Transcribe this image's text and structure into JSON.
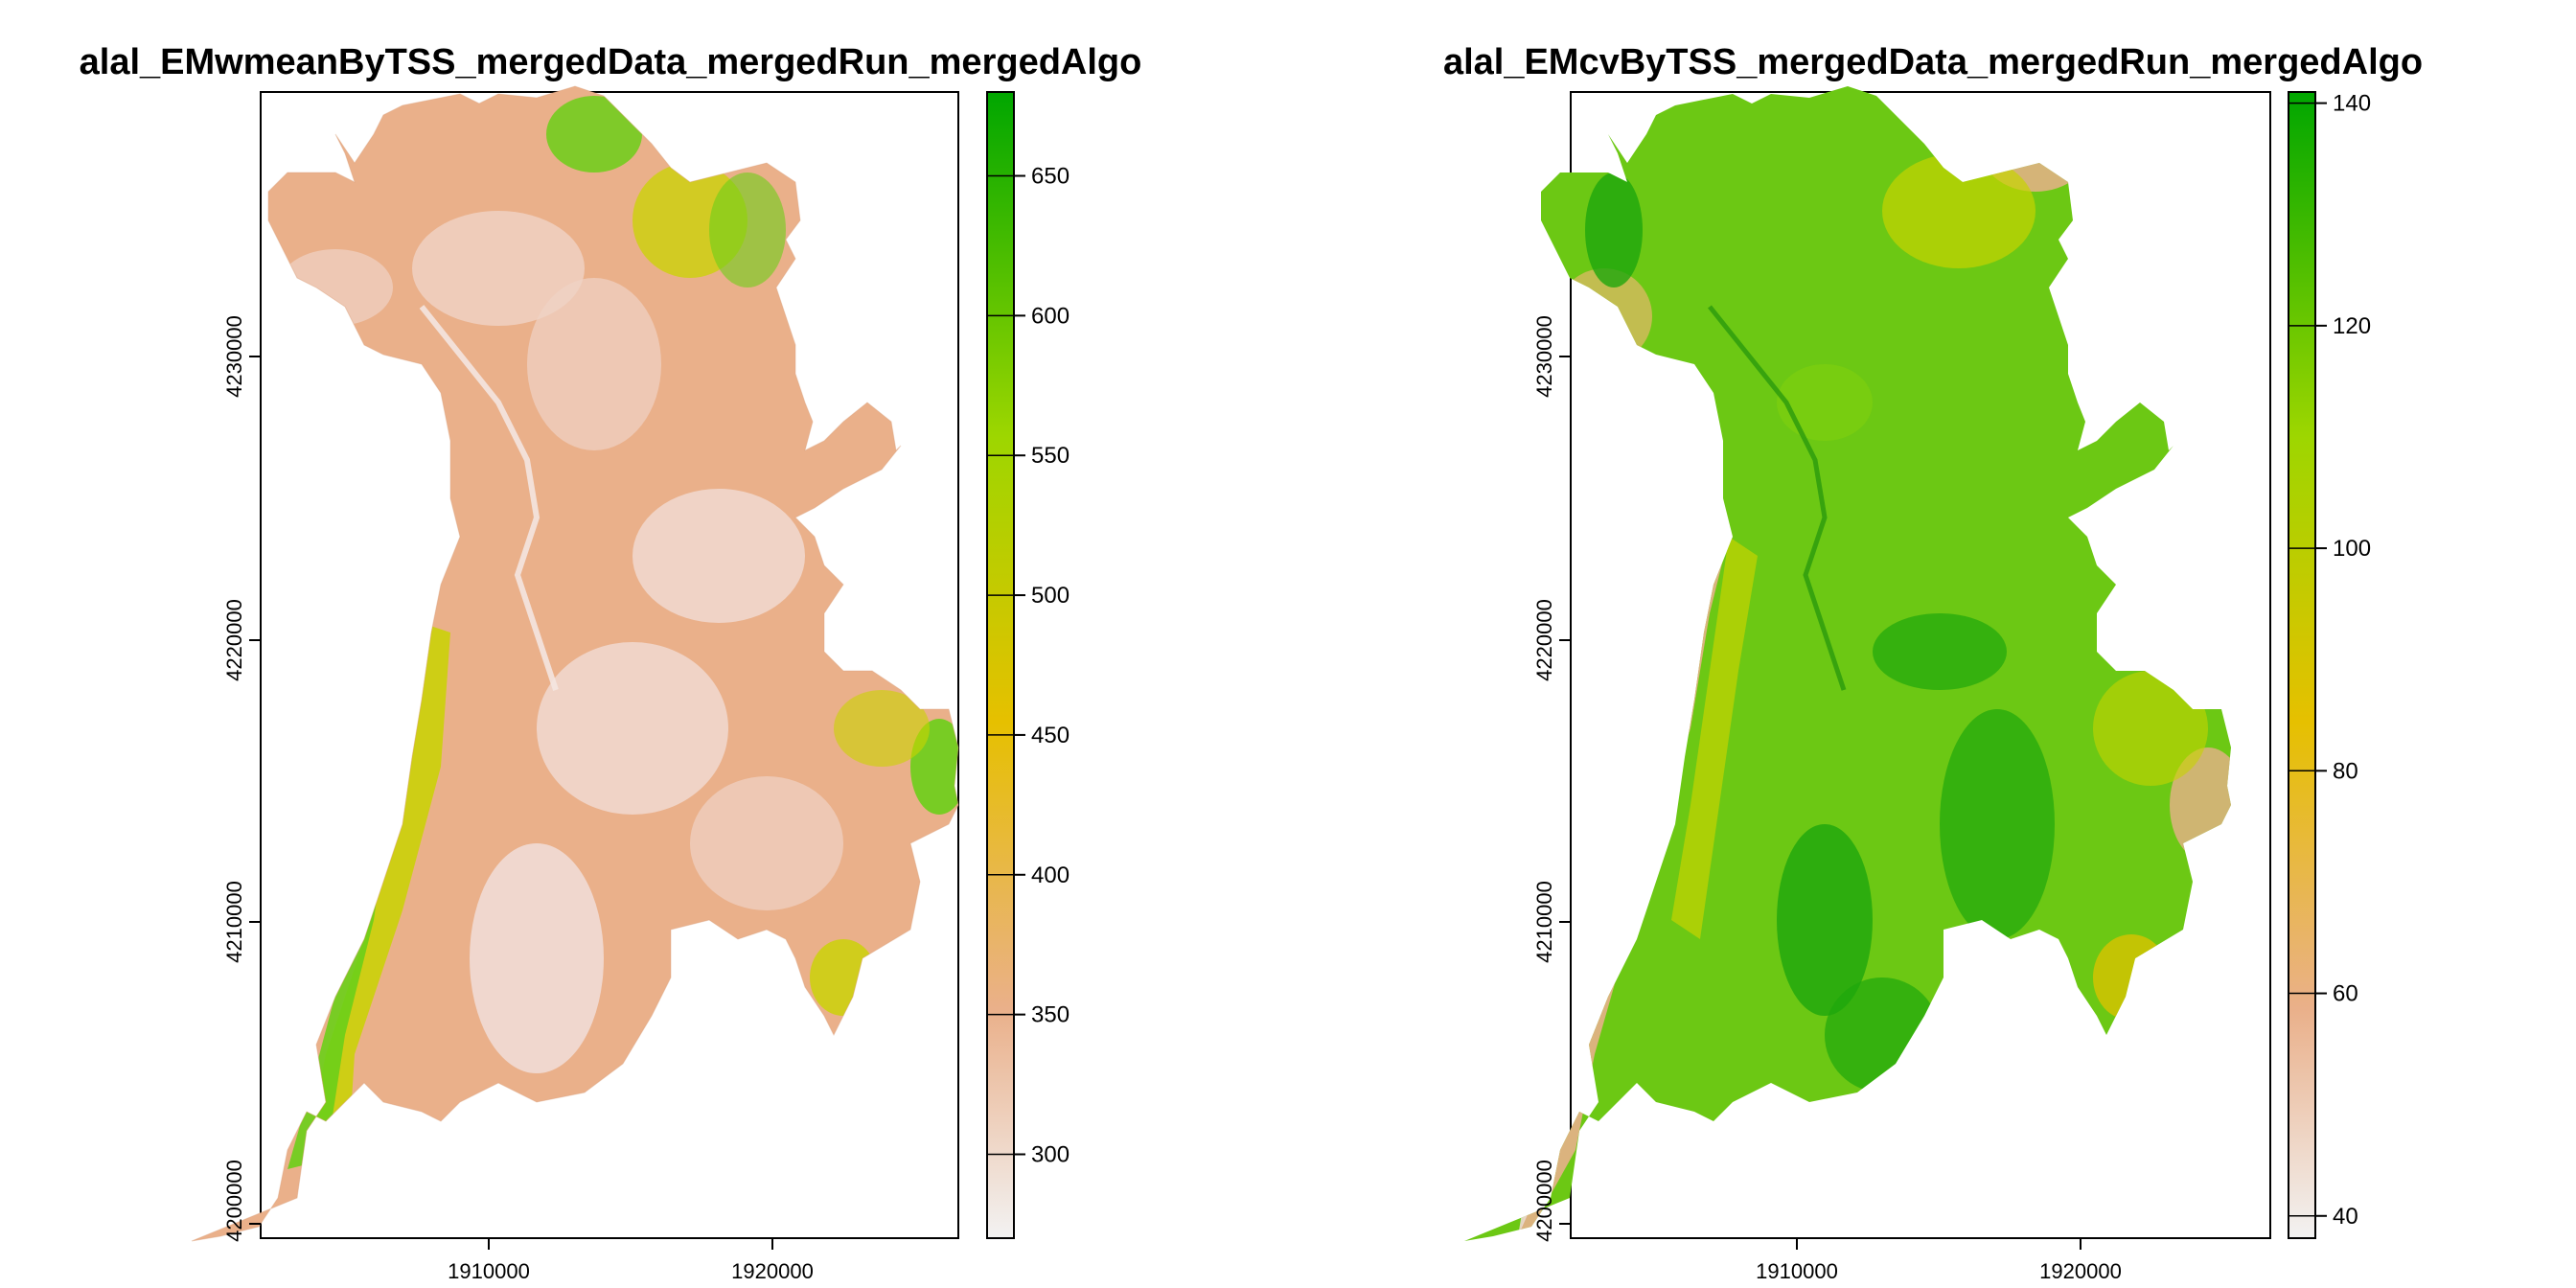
{
  "panels": [
    {
      "title": "alal_EMwmeanByTSS_mergedData_mergedRun_mergedAlgo",
      "x_ticks": [
        "1910000",
        "1920000"
      ],
      "y_ticks": [
        "4200000",
        "4210000",
        "4220000",
        "4230000"
      ],
      "legend_ticks": [
        "300",
        "350",
        "400",
        "450",
        "500",
        "550",
        "600",
        "650"
      ],
      "legend_range": [
        270,
        680
      ],
      "dominant_fill": "#eab08a",
      "low_fill": "#f1dcd5",
      "high_fill": "#6ccf18"
    },
    {
      "title": "alal_EMcvByTSS_mergedData_mergedRun_mergedAlgo",
      "x_ticks": [
        "1910000",
        "1920000"
      ],
      "y_ticks": [
        "4200000",
        "4210000",
        "4220000",
        "4230000"
      ],
      "legend_ticks": [
        "40",
        "60",
        "80",
        "100",
        "120",
        "140"
      ],
      "legend_range": [
        38,
        141
      ],
      "dominant_fill": "#6cc814",
      "low_fill": "#e8b08a",
      "high_fill": "#1ea60c"
    }
  ],
  "chart_data": [
    {
      "type": "heatmap",
      "title": "alal_EMwmeanByTSS_mergedData_mergedRun_mergedAlgo",
      "x_ticks": [
        1910000,
        1920000
      ],
      "y_ticks": [
        4200000,
        4210000,
        4220000,
        4230000
      ],
      "color_scale": {
        "min": 270,
        "max": 680,
        "ticks": [
          300,
          350,
          400,
          450,
          500,
          550,
          600,
          650
        ],
        "colors": [
          "#f2f2f2",
          "#eab08a",
          "#e6c000",
          "#9dd600",
          "#00a600"
        ]
      },
      "legend": "right"
    },
    {
      "type": "heatmap",
      "title": "alal_EMcvByTSS_mergedData_mergedRun_mergedAlgo",
      "x_ticks": [
        1910000,
        1920000
      ],
      "y_ticks": [
        4200000,
        4210000,
        4220000,
        4230000
      ],
      "color_scale": {
        "min": 38,
        "max": 141,
        "ticks": [
          40,
          60,
          80,
          100,
          120,
          140
        ],
        "colors": [
          "#f2f2f2",
          "#eab08a",
          "#e6c000",
          "#9dd600",
          "#00a600"
        ]
      },
      "legend": "right"
    }
  ]
}
